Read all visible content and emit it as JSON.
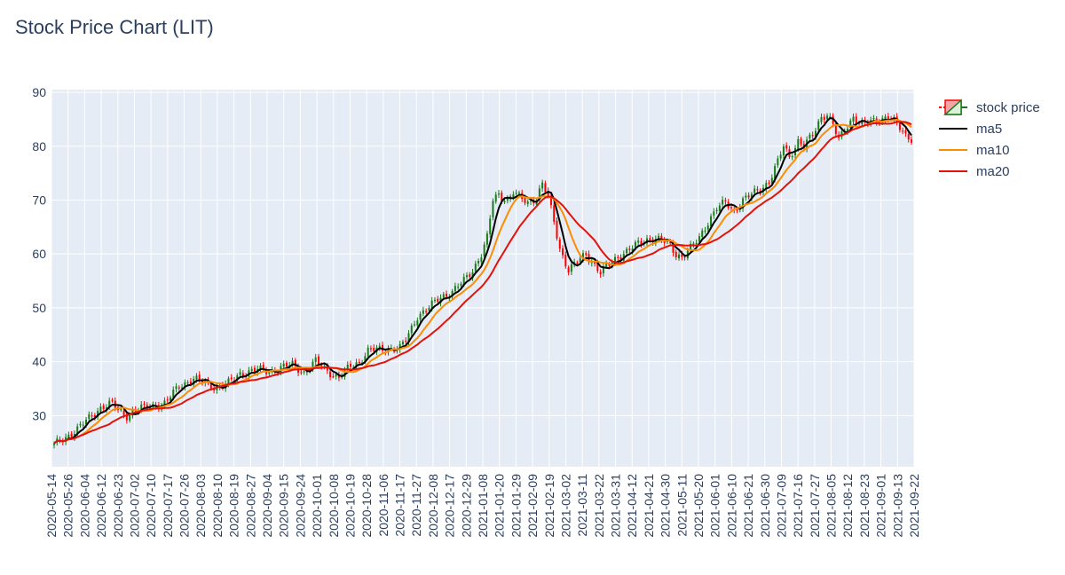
{
  "chart_data": {
    "type": "candlestick",
    "title": "Stock Price Chart (LIT)",
    "xlabel": "",
    "ylabel": "",
    "ylim": [
      20.5,
      90.5
    ],
    "y_ticks": [
      30,
      40,
      50,
      60,
      70,
      80,
      90
    ],
    "x_tick_labels": [
      "2020-05-14",
      "2020-05-26",
      "2020-06-04",
      "2020-06-12",
      "2020-06-23",
      "2020-07-02",
      "2020-07-10",
      "2020-07-17",
      "2020-07-26",
      "2020-08-03",
      "2020-08-10",
      "2020-08-19",
      "2020-08-27",
      "2020-09-04",
      "2020-09-15",
      "2020-09-24",
      "2020-10-01",
      "2020-10-08",
      "2020-10-19",
      "2020-10-28",
      "2020-11-06",
      "2020-11-17",
      "2020-11-27",
      "2020-12-08",
      "2020-12-17",
      "2020-12-29",
      "2021-01-08",
      "2021-01-20",
      "2021-01-29",
      "2021-02-09",
      "2021-02-19",
      "2021-03-02",
      "2021-03-11",
      "2021-03-22",
      "2021-03-31",
      "2021-04-12",
      "2021-04-21",
      "2021-04-30",
      "2021-05-11",
      "2021-05-20",
      "2021-06-01",
      "2021-06-10",
      "2021-06-21",
      "2021-06-30",
      "2021-07-09",
      "2021-07-16",
      "2021-07-27",
      "2021-08-05",
      "2021-08-12",
      "2021-08-23",
      "2021-09-01",
      "2021-09-13",
      "2021-09-22"
    ],
    "close_anchors": [
      [
        0,
        24.5
      ],
      [
        3,
        25.6
      ],
      [
        8,
        27.5
      ],
      [
        12,
        29.5
      ],
      [
        16,
        31.5
      ],
      [
        20,
        32.3
      ],
      [
        22,
        31.0
      ],
      [
        25,
        30.0
      ],
      [
        28,
        31.0
      ],
      [
        33,
        31.8
      ],
      [
        38,
        32.2
      ],
      [
        43,
        35.5
      ],
      [
        48,
        36.8
      ],
      [
        52,
        36.0
      ],
      [
        56,
        35.2
      ],
      [
        60,
        36.0
      ],
      [
        64,
        37.8
      ],
      [
        70,
        38.5
      ],
      [
        74,
        38.2
      ],
      [
        78,
        38.8
      ],
      [
        82,
        39.5
      ],
      [
        86,
        38.0
      ],
      [
        90,
        40.0
      ],
      [
        95,
        38.0
      ],
      [
        98,
        37.0
      ],
      [
        102,
        39.2
      ],
      [
        105,
        40.0
      ],
      [
        108,
        42.0
      ],
      [
        112,
        42.3
      ],
      [
        116,
        42.5
      ],
      [
        119,
        42.5
      ],
      [
        121,
        44.0
      ],
      [
        125,
        48.5
      ],
      [
        129,
        50.0
      ],
      [
        133,
        52.0
      ],
      [
        137,
        53.0
      ],
      [
        141,
        55.0
      ],
      [
        144,
        57.0
      ],
      [
        147,
        60.0
      ],
      [
        149,
        63.0
      ],
      [
        151,
        70.0
      ],
      [
        153,
        71.0
      ],
      [
        156,
        70.0
      ],
      [
        158,
        71.5
      ],
      [
        160,
        70.5
      ],
      [
        163,
        69.5
      ],
      [
        166,
        70.5
      ],
      [
        168,
        73.0
      ],
      [
        170,
        70.5
      ],
      [
        172,
        66.0
      ],
      [
        174,
        61.0
      ],
      [
        177,
        57.0
      ],
      [
        180,
        58.5
      ],
      [
        183,
        60.0
      ],
      [
        186,
        58.0
      ],
      [
        188,
        56.5
      ],
      [
        191,
        58.0
      ],
      [
        194,
        59.5
      ],
      [
        197,
        60.5
      ],
      [
        200,
        61.5
      ],
      [
        203,
        62.5
      ],
      [
        206,
        63.0
      ],
      [
        209,
        62.5
      ],
      [
        212,
        61.5
      ],
      [
        214,
        60.0
      ],
      [
        216,
        59.5
      ],
      [
        219,
        61.0
      ],
      [
        222,
        63.0
      ],
      [
        225,
        66.0
      ],
      [
        228,
        68.5
      ],
      [
        231,
        69.5
      ],
      [
        234,
        68.0
      ],
      [
        237,
        70.0
      ],
      [
        240,
        71.0
      ],
      [
        243,
        72.0
      ],
      [
        246,
        73.5
      ],
      [
        249,
        77.0
      ],
      [
        251,
        80.0
      ],
      [
        253,
        78.0
      ],
      [
        256,
        81.0
      ],
      [
        258,
        80.0
      ],
      [
        261,
        82.0
      ],
      [
        264,
        85.5
      ],
      [
        266,
        86.0
      ],
      [
        268,
        84.0
      ],
      [
        270,
        81.0
      ],
      [
        272,
        83.0
      ],
      [
        275,
        85.5
      ],
      [
        278,
        84.0
      ],
      [
        281,
        84.5
      ],
      [
        284,
        85.0
      ],
      [
        287,
        85.5
      ],
      [
        290,
        84.0
      ],
      [
        293,
        82.0
      ],
      [
        295,
        81.5
      ]
    ],
    "series": [
      {
        "name": "stock price",
        "kind": "candlestick",
        "increasing_color": "#1a7a1a",
        "decreasing_color": "#ff0000"
      },
      {
        "name": "ma5",
        "kind": "line",
        "window": 5,
        "color": "#000000"
      },
      {
        "name": "ma10",
        "kind": "line",
        "window": 10,
        "color": "#ff8c00"
      },
      {
        "name": "ma20",
        "kind": "line",
        "window": 20,
        "color": "#e3120b"
      }
    ],
    "grid": true,
    "legend_position": "top-right",
    "plot_background": "#e5ecf6"
  }
}
